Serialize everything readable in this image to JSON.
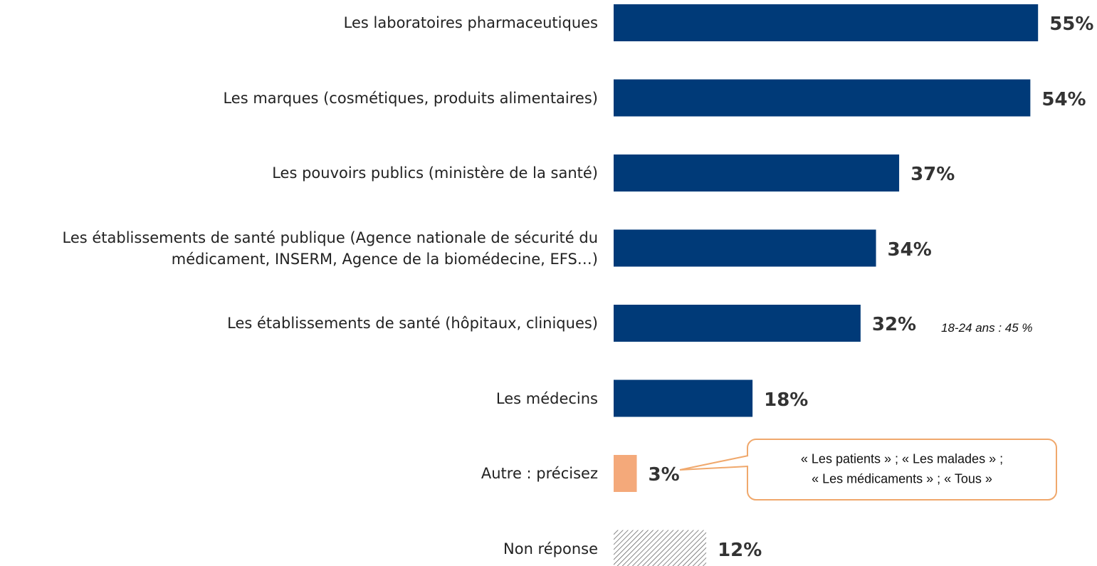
{
  "chart_data": {
    "type": "bar",
    "orientation": "horizontal",
    "categories": [
      "Les laboratoires pharmaceutiques",
      "Les marques (cosmétiques, produits alimentaires)",
      "Les pouvoirs publics (ministère de la santé)",
      "Les établissements de santé publique (Agence nationale de sécurité du médicament, INSERM, Agence de la biomédecine, EFS…)",
      "Les établissements de santé (hôpitaux, cliniques)",
      "Les médecins",
      "Autre : précisez",
      "Non réponse"
    ],
    "values": [
      55,
      54,
      37,
      34,
      32,
      18,
      3,
      12
    ],
    "value_labels": [
      "55%",
      "54%",
      "37%",
      "34%",
      "32%",
      "18%",
      "3%",
      "12%"
    ],
    "colors": [
      "#003a78",
      "#003a78",
      "#003a78",
      "#003a78",
      "#003a78",
      "#003a78",
      "#f4a97a",
      "#555555"
    ],
    "patterns": [
      "solid",
      "solid",
      "solid",
      "solid",
      "solid",
      "solid",
      "solid",
      "hatch"
    ],
    "annotations": [
      {
        "text": "18-24 ans : 45 %"
      },
      {
        "lines": [
          "« Les patients » ; « Les malades » ;",
          "« Les médicaments » ; « Tous »"
        ]
      }
    ]
  }
}
